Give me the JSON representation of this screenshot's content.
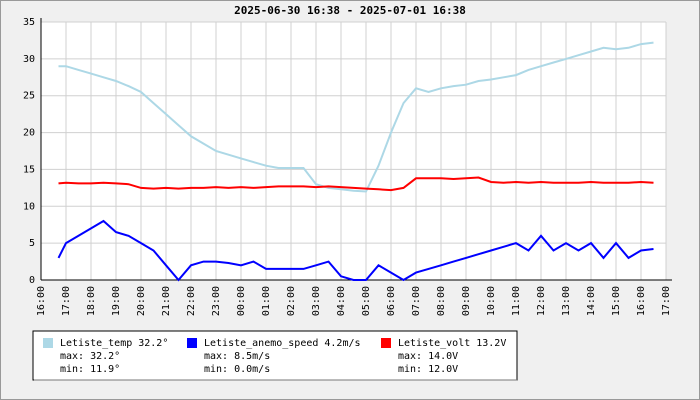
{
  "chart_data": {
    "type": "line",
    "title": "2025-06-30 16:38 - 2025-07-01 16:38",
    "x": [
      16.7,
      17,
      17.5,
      18,
      18.5,
      19,
      19.5,
      20,
      20.5,
      21,
      21.5,
      22,
      22.5,
      23,
      23.5,
      24,
      24.5,
      25,
      25.5,
      26,
      26.5,
      27,
      27.5,
      28,
      28.5,
      29,
      29.5,
      30,
      30.5,
      31,
      31.5,
      32,
      32.5,
      33,
      33.5,
      34,
      34.5,
      35,
      35.5,
      36,
      36.5,
      37,
      37.5,
      38,
      38.5,
      39,
      39.5,
      40,
      40.5
    ],
    "xlim": [
      16,
      41
    ],
    "xticks": [
      {
        "value": 16,
        "label": "16:00"
      },
      {
        "value": 17,
        "label": "17:00"
      },
      {
        "value": 18,
        "label": "18:00"
      },
      {
        "value": 19,
        "label": "19:00"
      },
      {
        "value": 20,
        "label": "20:00"
      },
      {
        "value": 21,
        "label": "21:00"
      },
      {
        "value": 22,
        "label": "22:00"
      },
      {
        "value": 23,
        "label": "23:00"
      },
      {
        "value": 24,
        "label": "00:00"
      },
      {
        "value": 25,
        "label": "01:00"
      },
      {
        "value": 26,
        "label": "02:00"
      },
      {
        "value": 27,
        "label": "03:00"
      },
      {
        "value": 28,
        "label": "04:00"
      },
      {
        "value": 29,
        "label": "05:00"
      },
      {
        "value": 30,
        "label": "06:00"
      },
      {
        "value": 31,
        "label": "07:00"
      },
      {
        "value": 32,
        "label": "08:00"
      },
      {
        "value": 33,
        "label": "09:00"
      },
      {
        "value": 34,
        "label": "10:00"
      },
      {
        "value": 35,
        "label": "11:00"
      },
      {
        "value": 36,
        "label": "12:00"
      },
      {
        "value": 37,
        "label": "13:00"
      },
      {
        "value": 38,
        "label": "14:00"
      },
      {
        "value": 39,
        "label": "15:00"
      },
      {
        "value": 40,
        "label": "16:00"
      },
      {
        "value": 41,
        "label": "17:00"
      }
    ],
    "ylim": [
      0,
      35
    ],
    "yticks": [
      0,
      5,
      10,
      15,
      20,
      25,
      30,
      35
    ],
    "grid": true,
    "series": [
      {
        "name": "Letiste_temp",
        "current": "32.2°",
        "max": "max: 32.2°",
        "min": "min: 11.9°",
        "color": "#add8e6",
        "values": [
          29,
          29,
          28.5,
          28,
          27.5,
          27,
          26.3,
          25.5,
          24,
          22.5,
          21,
          19.5,
          18.5,
          17.5,
          17,
          16.5,
          16,
          15.5,
          15.2,
          15.2,
          15.2,
          13,
          12.5,
          12.3,
          12.1,
          12,
          15.5,
          20,
          24,
          26,
          25.5,
          26,
          26.3,
          26.5,
          27,
          27.2,
          27.5,
          27.8,
          28.5,
          29,
          29.5,
          30,
          30.5,
          31,
          31.5,
          31.3,
          31.5,
          32,
          32.2
        ]
      },
      {
        "name": "Letiste_anemo_speed",
        "current": "4.2m/s",
        "max": "max: 8.5m/s",
        "min": "min: 0.0m/s",
        "color": "#0000ff",
        "values": [
          3,
          5,
          6,
          7,
          8,
          6.5,
          6,
          5,
          4,
          2,
          0,
          2,
          2.5,
          2.5,
          2.3,
          2,
          2.5,
          1.5,
          1.5,
          1.5,
          1.5,
          2,
          2.5,
          0.5,
          0,
          0,
          2,
          1,
          0,
          1,
          1.5,
          2,
          2.5,
          3,
          3.5,
          4,
          4.5,
          5,
          4,
          6,
          4,
          5,
          4,
          5,
          3,
          5,
          3,
          4,
          4.2
        ]
      },
      {
        "name": "Letiste_volt",
        "current": "13.2V",
        "max": "max: 14.0V",
        "min": "min: 12.0V",
        "color": "#ff0000",
        "values": [
          13.1,
          13.2,
          13.1,
          13.1,
          13.2,
          13.1,
          13.0,
          12.5,
          12.4,
          12.5,
          12.4,
          12.5,
          12.5,
          12.6,
          12.5,
          12.6,
          12.5,
          12.6,
          12.7,
          12.7,
          12.7,
          12.6,
          12.7,
          12.6,
          12.5,
          12.4,
          12.3,
          12.2,
          12.5,
          13.8,
          13.8,
          13.8,
          13.7,
          13.8,
          13.9,
          13.3,
          13.2,
          13.3,
          13.2,
          13.3,
          13.2,
          13.2,
          13.2,
          13.3,
          13.2,
          13.2,
          13.2,
          13.3,
          13.2
        ]
      }
    ]
  }
}
